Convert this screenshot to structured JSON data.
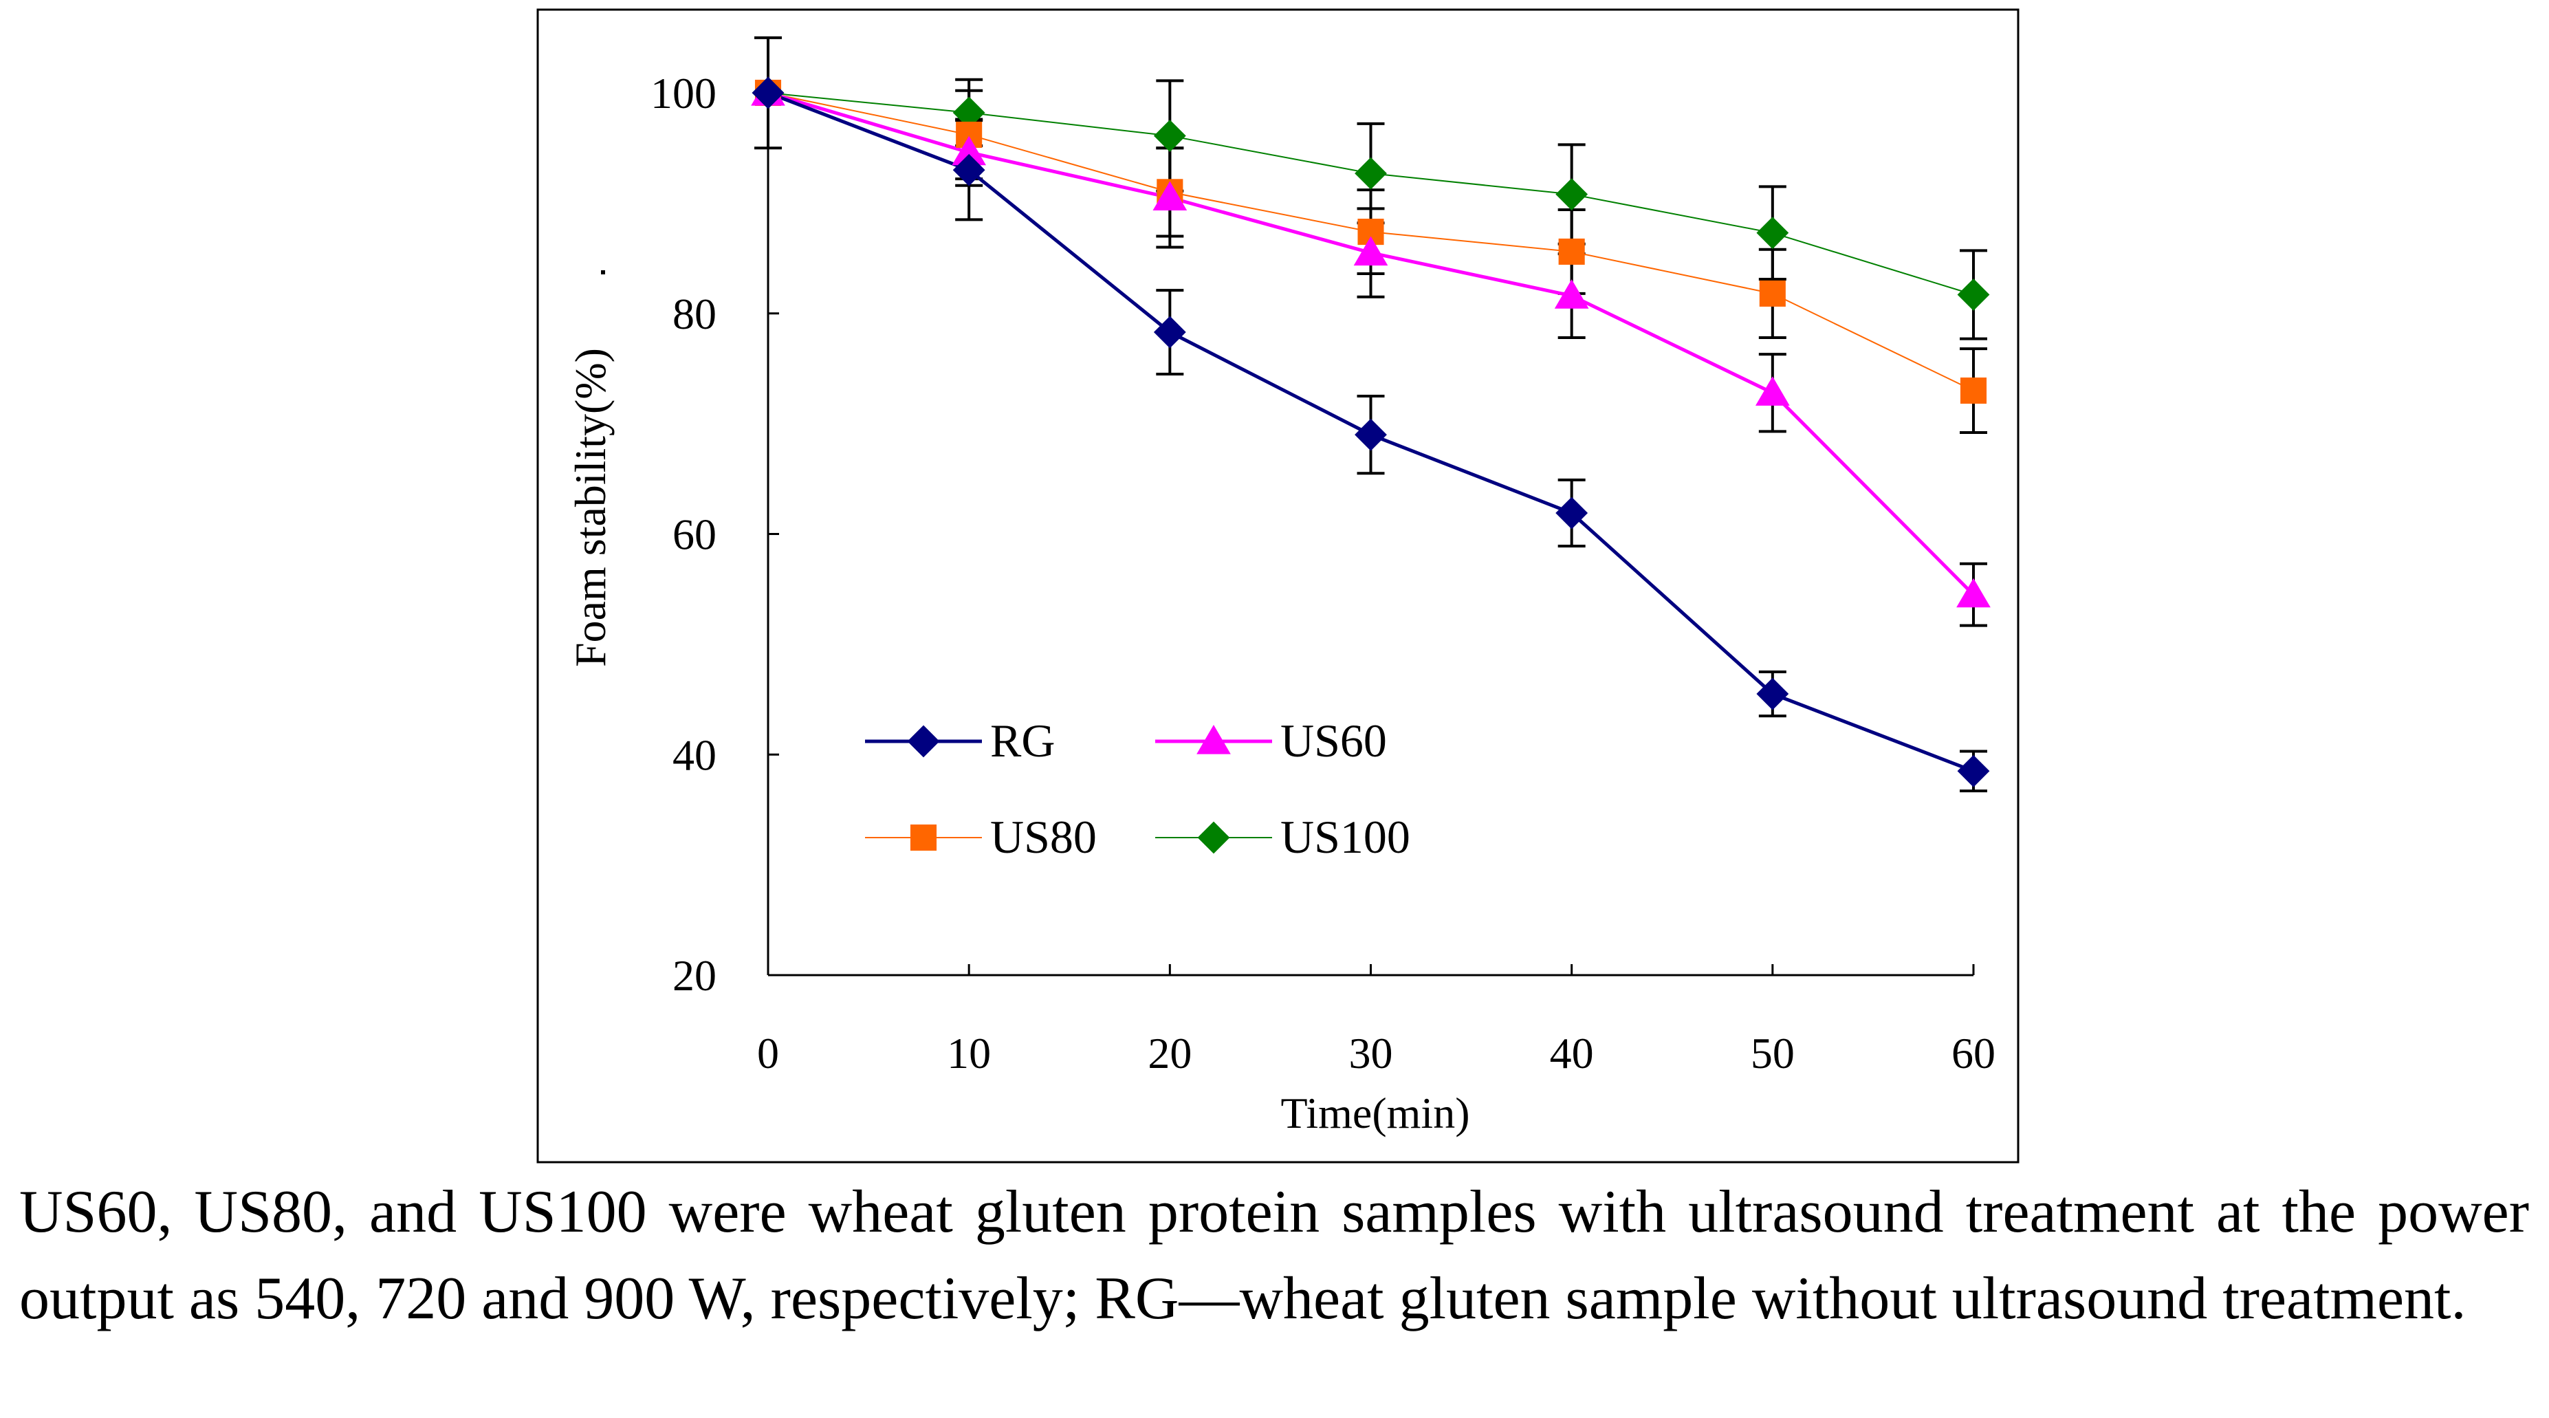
{
  "chart_data": {
    "type": "line",
    "title": "",
    "xlabel": "Time(min)",
    "ylabel": "Foam stability(%)",
    "x": [
      0,
      10,
      20,
      30,
      40,
      50,
      60
    ],
    "xlim": [
      0,
      60
    ],
    "ylim": [
      20,
      100
    ],
    "xticks": [
      "0",
      "10",
      "20",
      "30",
      "40",
      "50",
      "60"
    ],
    "yticks": [
      "20",
      "40",
      "60",
      "80",
      "100"
    ],
    "grid": false,
    "legend_position": "lower-left",
    "series": [
      {
        "name": "RG",
        "marker": "diamond",
        "color": "#000080",
        "values": [
          100,
          93,
          78.3,
          69,
          61.9,
          45.5,
          38.5
        ],
        "errors": [
          5,
          4.5,
          3.8,
          3.5,
          3,
          2,
          1.8
        ]
      },
      {
        "name": "US60",
        "marker": "triangle",
        "color": "#FF00FF",
        "values": [
          100,
          94.6,
          90.5,
          85.5,
          81.6,
          72.8,
          54.5
        ],
        "errors": [
          0,
          3,
          4.5,
          4,
          3.8,
          3.5,
          2.8
        ]
      },
      {
        "name": "US80",
        "marker": "square",
        "color": "#FF6600",
        "values": [
          100,
          96.2,
          91,
          87.4,
          85.6,
          81.8,
          73
        ],
        "errors": [
          0,
          4,
          4,
          3.8,
          3.8,
          4,
          3.8
        ]
      },
      {
        "name": "US100",
        "marker": "diamond",
        "color": "#008000",
        "values": [
          100,
          98.2,
          96.1,
          92.7,
          90.8,
          87.3,
          81.7
        ],
        "errors": [
          0,
          3,
          5,
          4.5,
          4.5,
          4.2,
          4
        ]
      }
    ]
  },
  "caption": "US60, US80, and US100 were wheat gluten protein samples with ultrasound treatment at the power output as 540, 720 and 900 W, respectively; RG—wheat gluten sample without ultrasound treatment."
}
